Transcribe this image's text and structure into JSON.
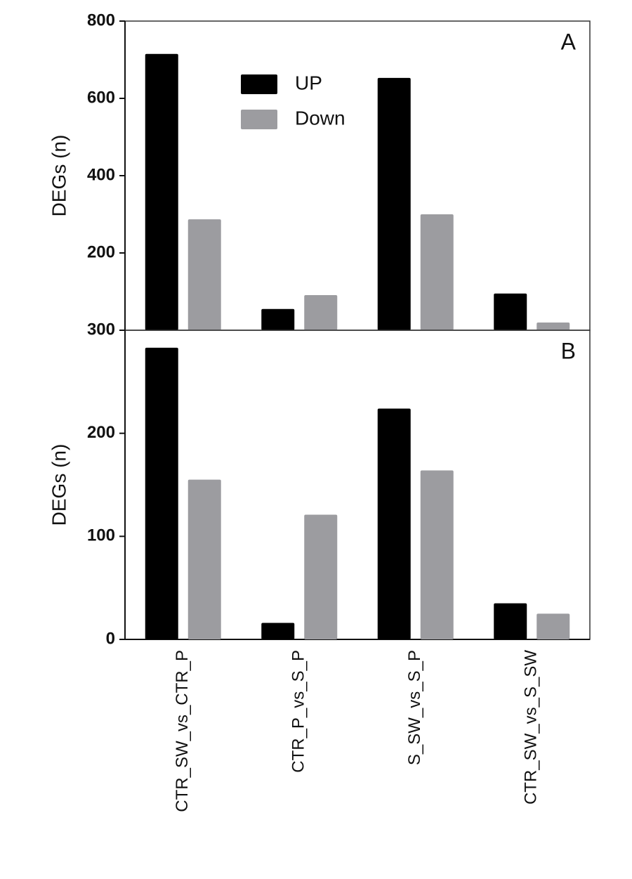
{
  "chart_data": [
    {
      "type": "bar",
      "label": "A",
      "y_label": "DEGs (n)",
      "legend": true,
      "categories": [
        null,
        null,
        null,
        null
      ],
      "series": [
        {
          "name": "UP",
          "color": "#000000",
          "values": [
            715,
            55,
            653,
            95
          ]
        },
        {
          "name": "Down",
          "color": "#9c9ca0",
          "values": [
            287,
            91,
            300,
            20
          ]
        }
      ],
      "ylim": [
        0,
        800
      ],
      "yticks": [
        200,
        400,
        600,
        800
      ]
    },
    {
      "type": "bar",
      "label": "B",
      "y_label": "DEGs (n)",
      "legend": false,
      "categories": [
        "CTR_SW_vs_CTR_P",
        "CTR_P_vs_S_P",
        "S_SW_vs_S_P",
        "CTR_SW_vs_S_SW"
      ],
      "series": [
        {
          "name": "UP",
          "color": "#000000",
          "values": [
            283,
            16,
            224,
            35
          ]
        },
        {
          "name": "Down",
          "color": "#9c9ca0",
          "values": [
            155,
            121,
            164,
            25
          ]
        }
      ],
      "ylim": [
        0,
        300
      ],
      "yticks": [
        0,
        100,
        200,
        300
      ]
    }
  ]
}
